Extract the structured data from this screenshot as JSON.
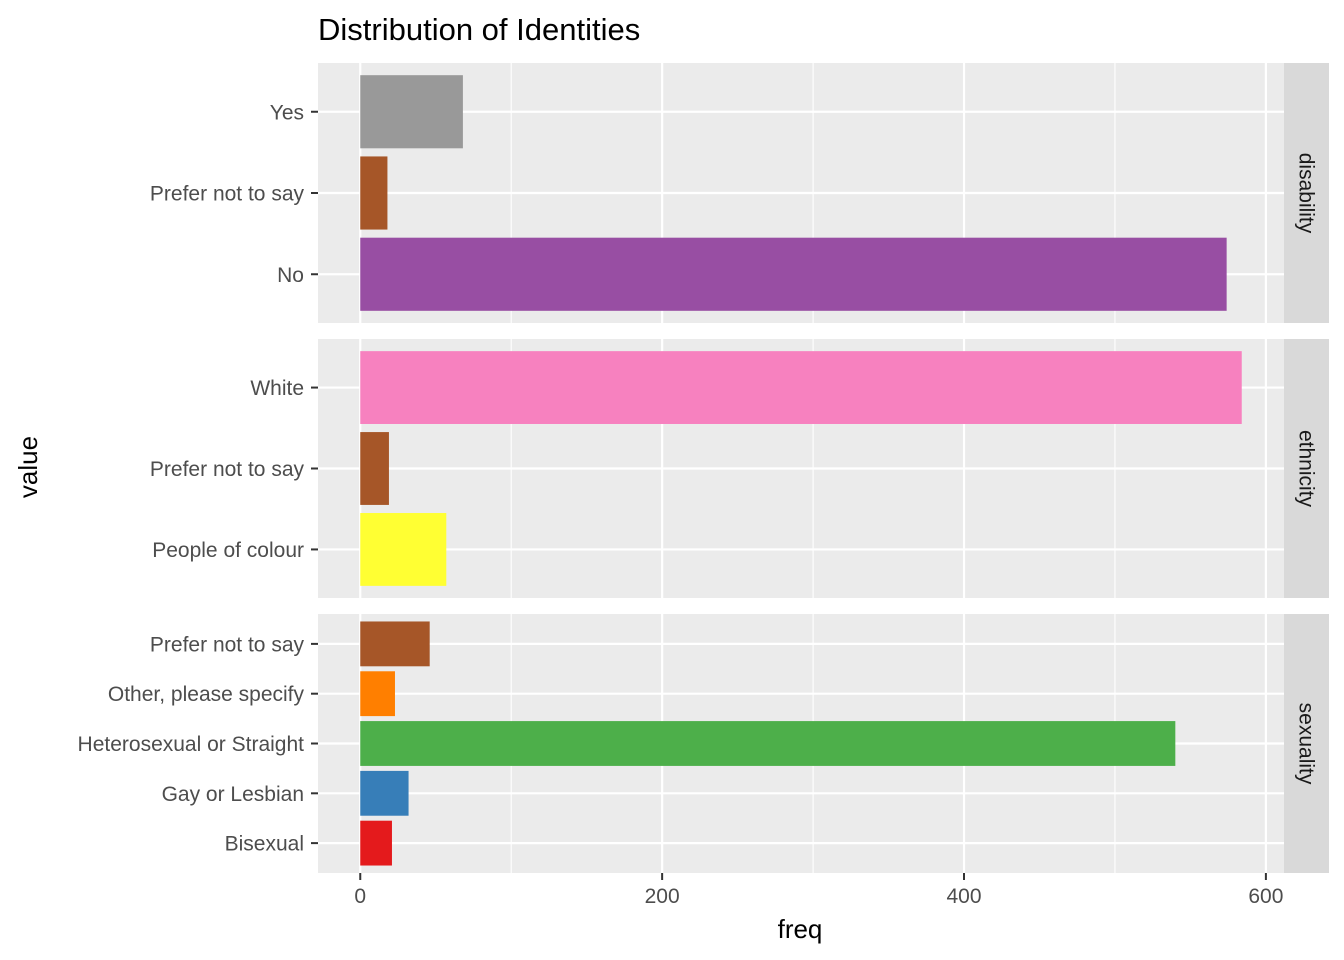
{
  "chart_data": {
    "type": "bar",
    "orientation": "horizontal",
    "title": "Distribution of Identities",
    "xlabel": "freq",
    "ylabel": "value",
    "xlim": [
      -28,
      612
    ],
    "x_ticks": [
      "0",
      "200",
      "400",
      "600"
    ],
    "grid": true,
    "facets": [
      {
        "name": "disability",
        "categories": [
          "Yes",
          "Prefer not to say",
          "No"
        ],
        "values": [
          68,
          18,
          574
        ],
        "colors": [
          "#999999",
          "#A65628",
          "#984EA3"
        ]
      },
      {
        "name": "ethnicity",
        "categories": [
          "White",
          "Prefer not to say",
          "People of colour"
        ],
        "values": [
          584,
          19,
          57
        ],
        "colors": [
          "#F781BF",
          "#A65628",
          "#FFFF33"
        ]
      },
      {
        "name": "sexuality",
        "categories": [
          "Prefer not to say",
          "Other, please specify",
          "Heterosexual or Straight",
          "Gay or Lesbian",
          "Bisexual"
        ],
        "values": [
          46,
          23,
          540,
          32,
          21
        ],
        "colors": [
          "#A65628",
          "#FF7F00",
          "#4DAF4A",
          "#377EB8",
          "#E41A1C"
        ]
      }
    ]
  }
}
